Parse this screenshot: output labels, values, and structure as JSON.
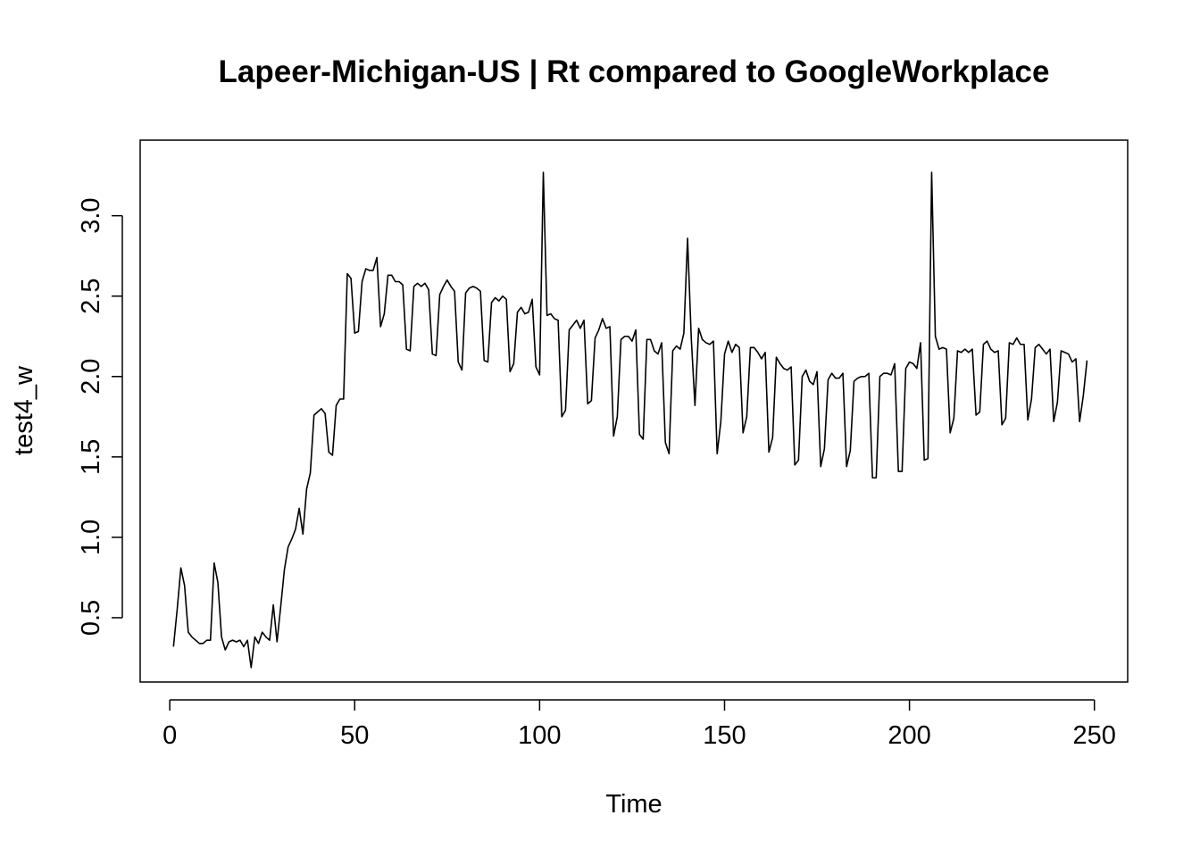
{
  "chart_data": {
    "type": "line",
    "title": "Lapeer-Michigan-US | Rt compared to GoogleWorkplace",
    "xlabel": "Time",
    "ylabel": "test4_w",
    "xlim": [
      -8,
      259
    ],
    "ylim": [
      0.1,
      3.47
    ],
    "xticks": [
      0,
      50,
      100,
      150,
      200,
      250
    ],
    "xtick_labels": [
      "0",
      "50",
      "100",
      "150",
      "200",
      "250"
    ],
    "yticks": [
      0.5,
      1.0,
      1.5,
      2.0,
      2.5,
      3.0
    ],
    "ytick_labels": [
      "0.5",
      "1.0",
      "1.5",
      "2.0",
      "2.5",
      "3.0"
    ],
    "grid": false,
    "legend": "none",
    "series": [
      {
        "color": "#000000",
        "x": [
          1,
          2,
          3,
          4,
          5,
          6,
          7,
          8,
          9,
          10,
          11,
          12,
          13,
          14,
          15,
          16,
          17,
          18,
          19,
          20,
          21,
          22,
          23,
          24,
          25,
          26,
          27,
          28,
          29,
          30,
          31,
          32,
          33,
          34,
          35,
          36,
          37,
          38,
          39,
          40,
          41,
          42,
          43,
          44,
          45,
          46,
          47,
          48,
          49,
          50,
          51,
          52,
          53,
          54,
          55,
          56,
          57,
          58,
          59,
          60,
          61,
          62,
          63,
          64,
          65,
          66,
          67,
          68,
          69,
          70,
          71,
          72,
          73,
          74,
          75,
          76,
          77,
          78,
          79,
          80,
          81,
          82,
          83,
          84,
          85,
          86,
          87,
          88,
          89,
          90,
          91,
          92,
          93,
          94,
          95,
          96,
          97,
          98,
          99,
          100,
          101,
          102,
          103,
          104,
          105,
          106,
          107,
          108,
          109,
          110,
          111,
          112,
          113,
          114,
          115,
          116,
          117,
          118,
          119,
          120,
          121,
          122,
          123,
          124,
          125,
          126,
          127,
          128,
          129,
          130,
          131,
          132,
          133,
          134,
          135,
          136,
          137,
          138,
          139,
          140,
          141,
          142,
          143,
          144,
          145,
          146,
          147,
          148,
          149,
          150,
          151,
          152,
          153,
          154,
          155,
          156,
          157,
          158,
          159,
          160,
          161,
          162,
          163,
          164,
          165,
          166,
          167,
          168,
          169,
          170,
          171,
          172,
          173,
          174,
          175,
          176,
          177,
          178,
          179,
          180,
          181,
          182,
          183,
          184,
          185,
          186,
          187,
          188,
          189,
          190,
          191,
          192,
          193,
          194,
          195,
          196,
          197,
          198,
          199,
          200,
          201,
          202,
          203,
          204,
          205,
          206,
          207,
          208,
          209,
          210,
          211,
          212,
          213,
          214,
          215,
          216,
          217,
          218,
          219,
          220,
          221,
          222,
          223,
          224,
          225,
          226,
          227,
          228,
          229,
          230,
          231,
          232,
          233,
          234,
          235,
          236,
          237,
          238,
          239,
          240,
          241,
          242,
          243,
          244,
          245,
          246,
          247,
          248
        ],
        "y": [
          0.32,
          0.55,
          0.81,
          0.7,
          0.41,
          0.38,
          0.36,
          0.34,
          0.34,
          0.36,
          0.36,
          0.84,
          0.72,
          0.38,
          0.3,
          0.35,
          0.36,
          0.35,
          0.36,
          0.32,
          0.36,
          0.19,
          0.38,
          0.34,
          0.41,
          0.38,
          0.36,
          0.58,
          0.35,
          0.57,
          0.8,
          0.94,
          0.99,
          1.05,
          1.18,
          1.02,
          1.3,
          1.4,
          1.76,
          1.78,
          1.8,
          1.77,
          1.53,
          1.51,
          1.82,
          1.86,
          1.86,
          2.64,
          2.61,
          2.27,
          2.28,
          2.59,
          2.67,
          2.66,
          2.66,
          2.74,
          2.31,
          2.39,
          2.63,
          2.63,
          2.59,
          2.59,
          2.57,
          2.17,
          2.16,
          2.56,
          2.58,
          2.56,
          2.58,
          2.54,
          2.14,
          2.13,
          2.51,
          2.56,
          2.6,
          2.56,
          2.53,
          2.09,
          2.04,
          2.52,
          2.55,
          2.56,
          2.55,
          2.53,
          2.1,
          2.09,
          2.46,
          2.49,
          2.47,
          2.5,
          2.48,
          2.03,
          2.08,
          2.4,
          2.43,
          2.39,
          2.4,
          2.48,
          2.06,
          2.01,
          3.27,
          2.38,
          2.39,
          2.36,
          2.35,
          1.75,
          1.79,
          2.29,
          2.32,
          2.35,
          2.3,
          2.35,
          1.83,
          1.85,
          2.24,
          2.29,
          2.36,
          2.3,
          2.31,
          1.63,
          1.75,
          2.23,
          2.25,
          2.25,
          2.22,
          2.29,
          1.64,
          1.61,
          2.23,
          2.23,
          2.16,
          2.14,
          2.21,
          1.59,
          1.52,
          2.16,
          2.19,
          2.17,
          2.27,
          2.86,
          2.24,
          1.82,
          2.3,
          2.23,
          2.21,
          2.2,
          2.22,
          1.52,
          1.72,
          2.14,
          2.22,
          2.15,
          2.2,
          2.18,
          1.65,
          1.75,
          2.18,
          2.18,
          2.15,
          2.11,
          2.15,
          1.53,
          1.62,
          2.12,
          2.08,
          2.05,
          2.04,
          2.06,
          1.45,
          1.48,
          2.0,
          2.04,
          1.97,
          1.95,
          2.03,
          1.44,
          1.55,
          1.98,
          2.02,
          1.99,
          1.99,
          2.02,
          1.44,
          1.54,
          1.97,
          1.99,
          2.0,
          2.0,
          2.02,
          1.37,
          1.37,
          2.0,
          2.02,
          2.02,
          2.01,
          2.08,
          1.41,
          1.41,
          2.05,
          2.09,
          2.08,
          2.05,
          2.21,
          1.48,
          1.49,
          3.27,
          2.25,
          2.17,
          2.18,
          2.17,
          1.65,
          1.74,
          2.16,
          2.15,
          2.17,
          2.15,
          2.17,
          1.76,
          1.78,
          2.2,
          2.22,
          2.17,
          2.15,
          2.16,
          1.7,
          1.74,
          2.21,
          2.2,
          2.24,
          2.2,
          2.2,
          1.73,
          1.86,
          2.18,
          2.2,
          2.17,
          2.14,
          2.17,
          1.72,
          1.84,
          2.16,
          2.15,
          2.14,
          2.09,
          2.11,
          1.72,
          1.88,
          2.1
        ]
      }
    ]
  }
}
